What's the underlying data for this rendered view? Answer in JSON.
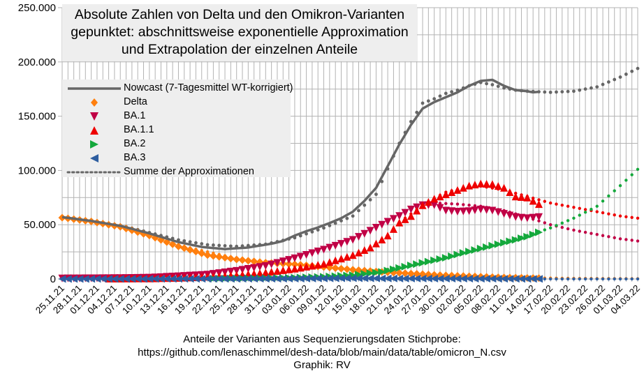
{
  "chart_data": {
    "type": "scatter",
    "title": [
      "Absolute Zahlen von Delta und den Omikron-Varianten",
      "gepunktet: abschnittsweise exponentielle Approximation",
      "und Extrapolation der einzelnen Anteile"
    ],
    "xlabel": "",
    "ylabel": "",
    "ylim": [
      0,
      250000
    ],
    "y_ticks": [
      {
        "value": 0,
        "label": "0"
      },
      {
        "value": 50000,
        "label": "50.000"
      },
      {
        "value": 100000,
        "label": "100.000"
      },
      {
        "value": 150000,
        "label": "150.000"
      },
      {
        "value": 200000,
        "label": "200.000"
      },
      {
        "value": 250000,
        "label": "250.000"
      }
    ],
    "x_start_date": "25.11.21",
    "x_days": 99,
    "x_tick_labels": [
      "25.11.21",
      "28.11.21",
      "01.12.21",
      "04.12.21",
      "07.12.21",
      "10.12.21",
      "13.12.21",
      "16.12.21",
      "19.12.21",
      "22.12.21",
      "25.12.21",
      "28.12.21",
      "31.12.21",
      "03.01.22",
      "06.01.22",
      "09.01.22",
      "12.01.22",
      "15.01.22",
      "18.01.22",
      "21.01.22",
      "24.01.22",
      "27.01.22",
      "30.01.22",
      "02.02.22",
      "05.02.22",
      "08.02.22",
      "11.02.22",
      "14.02.22",
      "17.02.22",
      "20.02.22",
      "23.02.22",
      "26.02.22",
      "01.03.22",
      "04.03.22"
    ],
    "x_tick_step_days": 3,
    "grid": true,
    "legend_placement": "top-left",
    "legend": [
      "Nowcast (7-Tagesmittel WT-korrigiert)",
      "Delta",
      "BA.1",
      "BA.1.1",
      "BA.2",
      "BA.3",
      "Summe der Approximationen"
    ],
    "series": [
      {
        "name": "Nowcast (7-Tagesmittel WT-korrigiert)",
        "style": "line",
        "color": "#666666",
        "points": [
          [
            0,
            57000
          ],
          [
            5,
            53500
          ],
          [
            10,
            49000
          ],
          [
            15,
            42000
          ],
          [
            20,
            34000
          ],
          [
            24,
            29500
          ],
          [
            28,
            27500
          ],
          [
            32,
            29000
          ],
          [
            36,
            32500
          ],
          [
            38,
            35000
          ],
          [
            40,
            40000
          ],
          [
            42,
            44000
          ],
          [
            44,
            47500
          ],
          [
            46,
            51500
          ],
          [
            48,
            56000
          ],
          [
            50,
            62000
          ],
          [
            52,
            72000
          ],
          [
            54,
            84000
          ],
          [
            56,
            104000
          ],
          [
            58,
            124000
          ],
          [
            60,
            142000
          ],
          [
            62,
            157000
          ],
          [
            64,
            163000
          ],
          [
            66,
            167500
          ],
          [
            68,
            172000
          ],
          [
            70,
            178000
          ],
          [
            72,
            182500
          ],
          [
            74,
            183500
          ],
          [
            76,
            178000
          ],
          [
            78,
            174000
          ],
          [
            80,
            173000
          ],
          [
            81,
            172000
          ],
          [
            82,
            172500
          ]
        ]
      },
      {
        "name": "Delta",
        "style": "marker",
        "marker": "diamond",
        "color": "#ff7f0e",
        "points": [
          [
            0,
            56500
          ],
          [
            5,
            53000
          ],
          [
            10,
            48000
          ],
          [
            15,
            40000
          ],
          [
            20,
            30000
          ],
          [
            25,
            22000
          ],
          [
            30,
            18000
          ],
          [
            35,
            15000
          ],
          [
            40,
            13500
          ],
          [
            45,
            11000
          ],
          [
            50,
            8500
          ],
          [
            55,
            6500
          ],
          [
            60,
            5000
          ],
          [
            65,
            3500
          ],
          [
            70,
            2500
          ],
          [
            75,
            1500
          ],
          [
            80,
            1000
          ],
          [
            82,
            800
          ]
        ],
        "fit": [
          [
            0,
            56500
          ],
          [
            10,
            48000
          ],
          [
            20,
            31000
          ],
          [
            30,
            19000
          ],
          [
            40,
            12000
          ],
          [
            50,
            8000
          ],
          [
            60,
            5000
          ],
          [
            70,
            2500
          ],
          [
            80,
            1000
          ],
          [
            90,
            500
          ],
          [
            99,
            300
          ]
        ]
      },
      {
        "name": "BA.1",
        "style": "marker",
        "marker": "triangle-down",
        "color": "#c00045",
        "points": [
          [
            0,
            500
          ],
          [
            10,
            800
          ],
          [
            15,
            1200
          ],
          [
            20,
            2500
          ],
          [
            25,
            4000
          ],
          [
            30,
            7500
          ],
          [
            35,
            12000
          ],
          [
            40,
            19000
          ],
          [
            45,
            27000
          ],
          [
            50,
            36000
          ],
          [
            55,
            50000
          ],
          [
            58,
            58000
          ],
          [
            60,
            64000
          ],
          [
            62,
            68000
          ],
          [
            64,
            68000
          ],
          [
            66,
            63000
          ],
          [
            68,
            62000
          ],
          [
            70,
            62500
          ],
          [
            72,
            64000
          ],
          [
            74,
            63000
          ],
          [
            76,
            60000
          ],
          [
            78,
            57000
          ],
          [
            80,
            56000
          ],
          [
            82,
            57000
          ]
        ],
        "fit": [
          [
            60,
            66000
          ],
          [
            64,
            70000
          ],
          [
            68,
            69000
          ],
          [
            72,
            67000
          ],
          [
            76,
            63000
          ],
          [
            80,
            57000
          ],
          [
            84,
            50000
          ],
          [
            88,
            45000
          ],
          [
            92,
            41000
          ],
          [
            96,
            37000
          ],
          [
            99,
            35000
          ]
        ]
      },
      {
        "name": "BA.1.1",
        "style": "marker",
        "marker": "triangle-up",
        "color": "#ee0000",
        "points": [
          [
            8,
            300
          ],
          [
            15,
            500
          ],
          [
            20,
            1000
          ],
          [
            25,
            2000
          ],
          [
            30,
            3500
          ],
          [
            35,
            6000
          ],
          [
            40,
            9500
          ],
          [
            45,
            14000
          ],
          [
            50,
            22000
          ],
          [
            53,
            29000
          ],
          [
            56,
            40000
          ],
          [
            58,
            52000
          ],
          [
            60,
            58000
          ],
          [
            62,
            68000
          ],
          [
            64,
            74000
          ],
          [
            66,
            78000
          ],
          [
            68,
            82000
          ],
          [
            70,
            86000
          ],
          [
            72,
            88000
          ],
          [
            74,
            87500
          ],
          [
            76,
            84000
          ],
          [
            78,
            76000
          ],
          [
            80,
            75000
          ],
          [
            81,
            72000
          ],
          [
            82,
            69000
          ]
        ],
        "fit": [
          [
            58,
            52000
          ],
          [
            62,
            68000
          ],
          [
            66,
            80000
          ],
          [
            70,
            85000
          ],
          [
            72,
            85500
          ],
          [
            76,
            82000
          ],
          [
            80,
            76000
          ],
          [
            84,
            70000
          ],
          [
            88,
            66000
          ],
          [
            92,
            62000
          ],
          [
            96,
            58000
          ],
          [
            99,
            56000
          ]
        ]
      },
      {
        "name": "BA.2",
        "style": "marker",
        "marker": "triangle-right",
        "color": "#14a83c",
        "points": [
          [
            26,
            300
          ],
          [
            35,
            800
          ],
          [
            40,
            1200
          ],
          [
            45,
            2000
          ],
          [
            50,
            3500
          ],
          [
            55,
            6500
          ],
          [
            60,
            12500
          ],
          [
            63,
            16000
          ],
          [
            66,
            19500
          ],
          [
            69,
            24000
          ],
          [
            72,
            28000
          ],
          [
            75,
            32000
          ],
          [
            78,
            36000
          ],
          [
            80,
            39000
          ],
          [
            82,
            43000
          ]
        ],
        "fit": [
          [
            50,
            3500
          ],
          [
            60,
            12500
          ],
          [
            70,
            25000
          ],
          [
            80,
            40000
          ],
          [
            84,
            47000
          ],
          [
            88,
            56000
          ],
          [
            92,
            67000
          ],
          [
            96,
            86000
          ],
          [
            99,
            101000
          ]
        ]
      },
      {
        "name": "BA.3",
        "style": "marker",
        "marker": "triangle-left",
        "color": "#2e5ea0",
        "points": [
          [
            0,
            0
          ],
          [
            10,
            100
          ],
          [
            20,
            150
          ],
          [
            30,
            200
          ],
          [
            40,
            300
          ],
          [
            45,
            500
          ],
          [
            50,
            700
          ],
          [
            55,
            500
          ],
          [
            60,
            400
          ],
          [
            70,
            300
          ],
          [
            75,
            200
          ],
          [
            80,
            100
          ],
          [
            82,
            100
          ]
        ],
        "fit": [
          [
            0,
            0
          ],
          [
            50,
            0
          ],
          [
            99,
            0
          ]
        ]
      },
      {
        "name": "Summe der Approximationen",
        "style": "dotted",
        "color": "#666666",
        "points": [
          [
            0,
            57000
          ],
          [
            10,
            49500
          ],
          [
            20,
            36000
          ],
          [
            25,
            31500
          ],
          [
            30,
            30000
          ],
          [
            35,
            32000
          ],
          [
            40,
            38000
          ],
          [
            45,
            47000
          ],
          [
            50,
            58000
          ],
          [
            54,
            78000
          ],
          [
            58,
            125000
          ],
          [
            60,
            145000
          ],
          [
            62,
            162000
          ],
          [
            64,
            166000
          ],
          [
            66,
            171000
          ],
          [
            68,
            174000
          ],
          [
            70,
            178000
          ],
          [
            72,
            181000
          ],
          [
            74,
            179000
          ],
          [
            76,
            176000
          ],
          [
            78,
            174000
          ],
          [
            80,
            173000
          ],
          [
            84,
            172000
          ],
          [
            88,
            173000
          ],
          [
            92,
            177000
          ],
          [
            96,
            186000
          ],
          [
            99,
            194000
          ]
        ]
      }
    ]
  },
  "footer": {
    "line1": "Anteile der Varianten aus Sequenzierungsdaten Stichprobe:",
    "line2": "https://github.com/lenaschimmel/desh-data/blob/main/data/table/omicron_N.csv",
    "line3": "Graphik: RV"
  }
}
